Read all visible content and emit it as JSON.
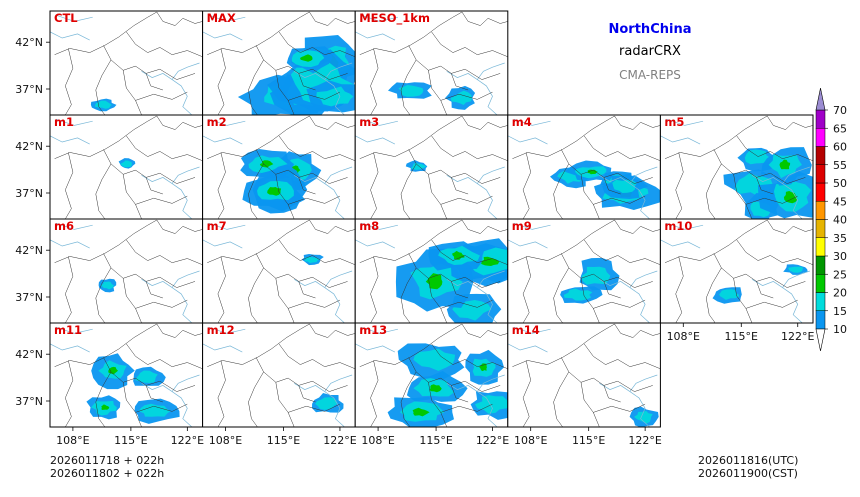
{
  "titles": {
    "region": "NorthChina",
    "variable": "radarCRX",
    "system": "CMA-REPS"
  },
  "footer": {
    "init_time_utc": "2026011718  +  022h",
    "init_time_cst": "2026011802  +  022h",
    "valid_time_utc": "2026011816(UTC)",
    "valid_time_cst": "2026011900(CST)"
  },
  "colors": {
    "label": "#e00000",
    "frame": "#000000",
    "border": "#333333",
    "coast": "#7ab8d8"
  },
  "chart_data": {
    "type": "heatmap",
    "title": "NorthChina radarCRX CMA-REPS",
    "x_ticks": [
      "108°E",
      "115°E",
      "122°E"
    ],
    "y_ticks": [
      "42°N",
      "37°N"
    ],
    "panels": [
      {
        "label": "CTL",
        "row": 0,
        "col": 0,
        "coverage": 0.12
      },
      {
        "label": "MAX",
        "row": 0,
        "col": 1,
        "coverage": 0.6
      },
      {
        "label": "MESO_1km",
        "row": 0,
        "col": 2,
        "coverage": 0.18
      },
      {
        "label": "m1",
        "row": 1,
        "col": 0,
        "coverage": 0.05
      },
      {
        "label": "m2",
        "row": 1,
        "col": 1,
        "coverage": 0.42
      },
      {
        "label": "m3",
        "row": 1,
        "col": 2,
        "coverage": 0.06
      },
      {
        "label": "m4",
        "row": 1,
        "col": 3,
        "coverage": 0.45
      },
      {
        "label": "m5",
        "row": 1,
        "col": 4,
        "coverage": 0.4
      },
      {
        "label": "m6",
        "row": 2,
        "col": 0,
        "coverage": 0.04
      },
      {
        "label": "m7",
        "row": 2,
        "col": 1,
        "coverage": 0.08
      },
      {
        "label": "m8",
        "row": 2,
        "col": 2,
        "coverage": 0.45
      },
      {
        "label": "m9",
        "row": 2,
        "col": 3,
        "coverage": 0.2
      },
      {
        "label": "m10",
        "row": 2,
        "col": 4,
        "coverage": 0.2
      },
      {
        "label": "m11",
        "row": 3,
        "col": 0,
        "coverage": 0.35
      },
      {
        "label": "m12",
        "row": 3,
        "col": 1,
        "coverage": 0.12
      },
      {
        "label": "m13",
        "row": 3,
        "col": 2,
        "coverage": 0.4
      },
      {
        "label": "m14",
        "row": 3,
        "col": 3,
        "coverage": 0.12
      }
    ],
    "colorbar": {
      "extend": "both",
      "levels": [
        "10",
        "15",
        "20",
        "25",
        "30",
        "35",
        "40",
        "45",
        "50",
        "55",
        "60",
        "65",
        "70"
      ],
      "colors": [
        "#0a96f0",
        "#00dcdc",
        "#00c800",
        "#009600",
        "#ffff00",
        "#e6b400",
        "#ff9600",
        "#ff0000",
        "#dc0000",
        "#b40000",
        "#ff00ff",
        "#a000c8",
        "#9b8cd2"
      ]
    }
  }
}
